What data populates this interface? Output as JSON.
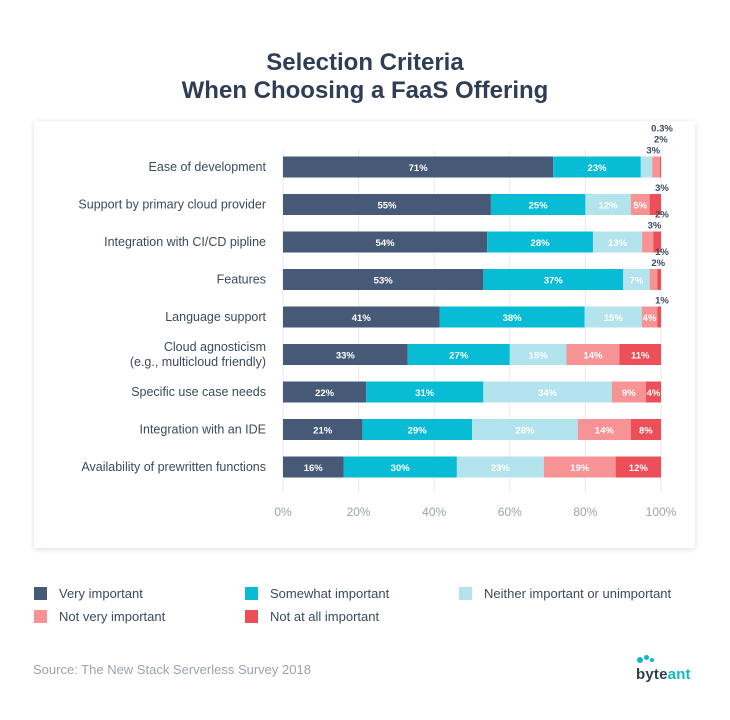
{
  "title_line1": "Selection Criteria",
  "title_line2": "When Choosing a FaaS Offering",
  "source": "Source: The New Stack Serverless Survey 2018",
  "logo": {
    "part1": "byte",
    "part2": "ant"
  },
  "colors": {
    "very": "#465a78",
    "somewhat": "#08bcd6",
    "neither": "#b3e3ec",
    "not_very": "#f79395",
    "not_at_all": "#ec4f57"
  },
  "chart_data": {
    "type": "bar",
    "orientation": "horizontal",
    "stacked": true,
    "title": "Selection Criteria When Choosing a FaaS Offering",
    "categories": [
      "Ease of development",
      "Support by primary cloud provider",
      "Integration with CI/CD pipline",
      "Features",
      "Language support",
      "Cloud agnosticism\n(e.g., multicloud friendly)",
      "Specific use case needs",
      "Integration with an IDE",
      "Availability of prewritten functions"
    ],
    "series": [
      {
        "name": "Very important",
        "color": "#465a78",
        "values": [
          71,
          55,
          54,
          53,
          41,
          33,
          22,
          21,
          16
        ],
        "labels": [
          "71%",
          "55%",
          "54%",
          "53%",
          "41%",
          "33%",
          "22%",
          "21%",
          "16%"
        ]
      },
      {
        "name": "Somewhat important",
        "color": "#08bcd6",
        "values": [
          23,
          25,
          28,
          37,
          38,
          27,
          31,
          29,
          30
        ],
        "labels": [
          "23%",
          "25%",
          "28%",
          "37%",
          "38%",
          "27%",
          "31%",
          "29%",
          "30%"
        ]
      },
      {
        "name": "Neither important or unimportant",
        "color": "#b3e3ec",
        "values": [
          3,
          12,
          13,
          7,
          15,
          15,
          34,
          28,
          23
        ],
        "labels": [
          "3%",
          "12%",
          "13%",
          "7%",
          "15%",
          "15%",
          "34%",
          "28%",
          "23%"
        ]
      },
      {
        "name": "Not very important",
        "color": "#f79395",
        "values": [
          2,
          5,
          3,
          2,
          4,
          14,
          9,
          14,
          19
        ],
        "labels": [
          "2%",
          "5%",
          "3%",
          "2%",
          "4%",
          "14%",
          "9%",
          "14%",
          "19%"
        ]
      },
      {
        "name": "Not at all important",
        "color": "#ec4f57",
        "values": [
          0.3,
          3,
          2,
          1,
          1,
          11,
          4,
          8,
          12
        ],
        "labels": [
          "0.3%",
          "3%",
          "2%",
          "1%",
          "1%",
          "11%",
          "4%",
          "8%",
          "12%"
        ]
      }
    ],
    "xaxis": {
      "ticks": [
        0,
        20,
        40,
        60,
        80,
        100
      ],
      "tick_labels": [
        "0%",
        "20%",
        "40%",
        "60%",
        "80%",
        "100%"
      ],
      "range": [
        0,
        100
      ]
    },
    "grid": true,
    "legend_position": "bottom"
  }
}
